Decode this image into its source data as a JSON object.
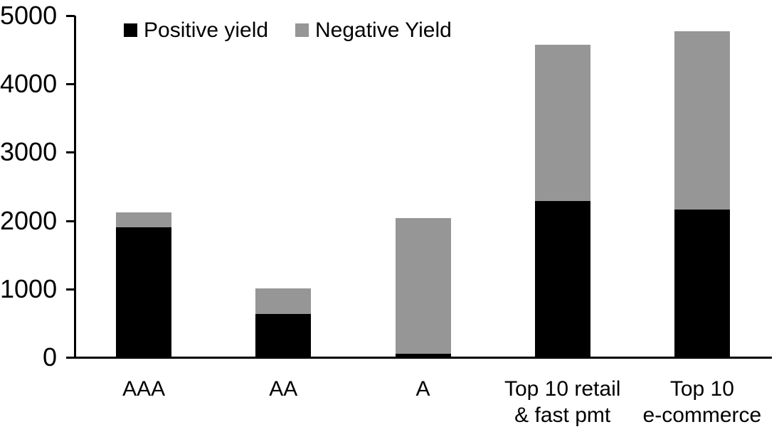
{
  "chart_data": {
    "type": "bar",
    "stacked": true,
    "title": "",
    "categories": [
      "AAA",
      "AA",
      "A",
      "Top 10 retail\n& fast pmt",
      "Top 10\ne-commerce"
    ],
    "series": [
      {
        "name": "Positive yield",
        "color": "#000000",
        "values": [
          1900,
          630,
          50,
          2290,
          2160
        ]
      },
      {
        "name": "Negative Yield",
        "color": "#969696",
        "values": [
          220,
          380,
          1990,
          2280,
          2610
        ]
      }
    ],
    "totals": [
      2120,
      1010,
      2040,
      4570,
      4770
    ],
    "ylim": [
      0,
      5000
    ],
    "yticks": [
      0,
      1000,
      2000,
      3000,
      4000,
      5000
    ],
    "xlabel": "",
    "ylabel": "",
    "grid": false,
    "legend_position": "top"
  },
  "colors": {
    "background": "#ffffff",
    "axis": "#000000",
    "positive_series": "#000000",
    "negative_series": "#969696"
  }
}
